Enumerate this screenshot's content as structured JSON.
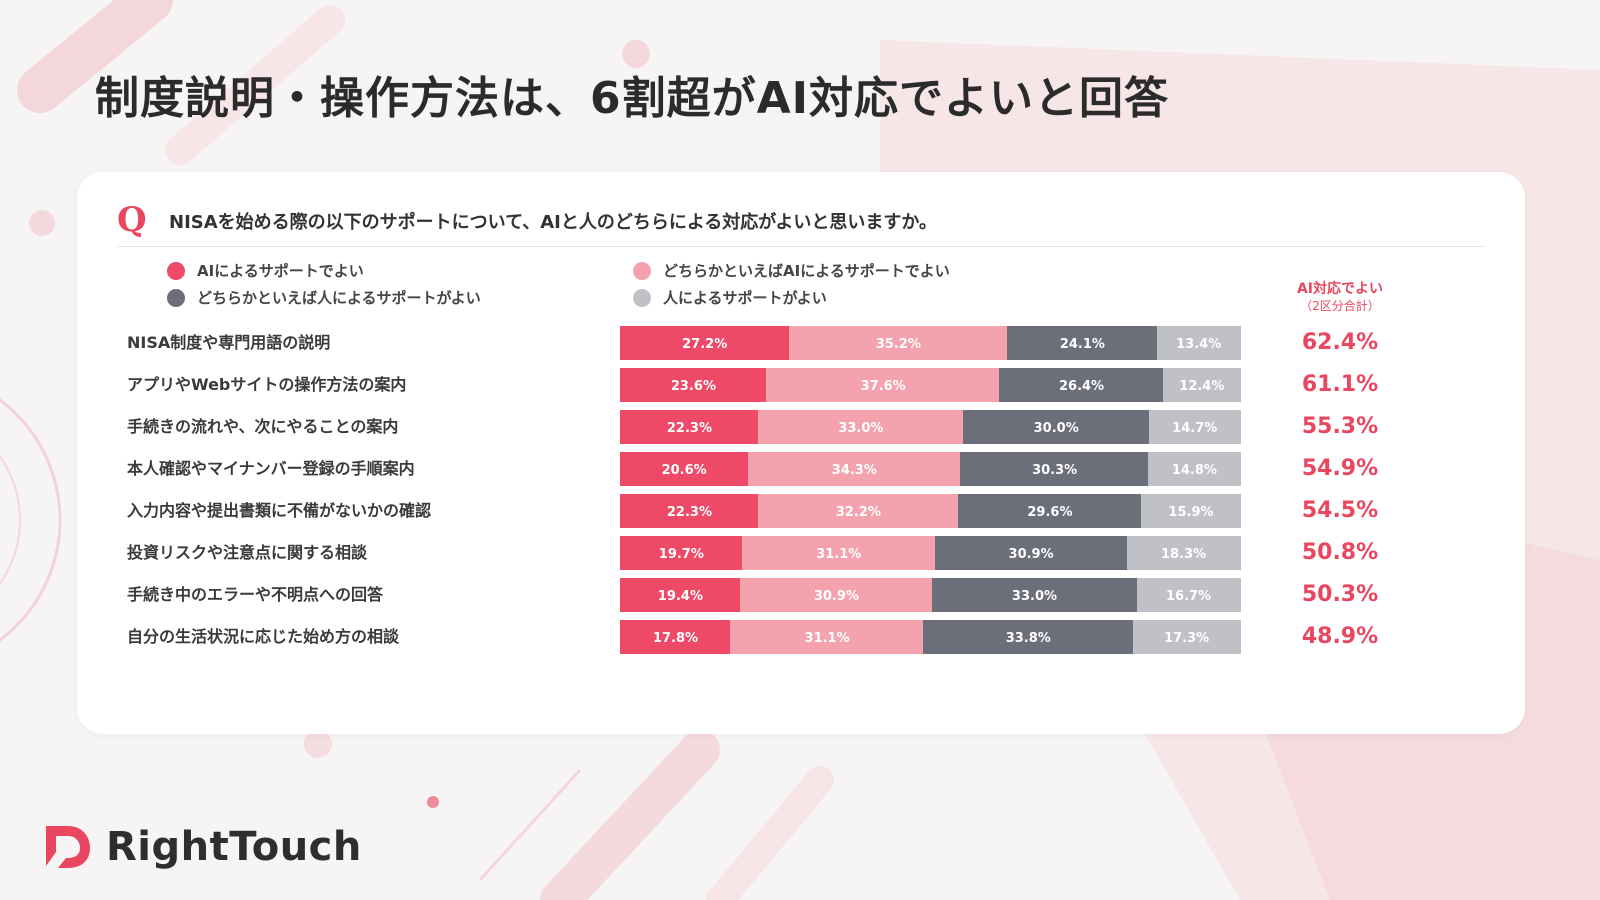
{
  "title": "制度説明・操作方法は、6割超がAI対応でよいと回答",
  "question": {
    "mark": "Q",
    "text": "NISAを始める際の以下のサポートについて、AIと人のどちらによる対応がよいと思いますか。"
  },
  "summary_header": {
    "title": "AI対応でよい",
    "subtitle": "（2区分合計）"
  },
  "brand": {
    "name": "RightTouch"
  },
  "colors": {
    "accent": "#e8475f",
    "ai": "#ee4a68",
    "lean_ai": "#f4a3ae",
    "lean_human": "#6c6f79",
    "human": "#bfc1c6",
    "background": "#f6f4f4",
    "card": "#ffffff"
  },
  "chart_data": {
    "type": "bar",
    "orientation": "horizontal",
    "stacked": true,
    "percent_scale": true,
    "xlim": [
      0,
      100
    ],
    "grid": false,
    "legend_position": "top",
    "categories": [
      "NISA制度や専門用語の説明",
      "アプリやWebサイトの操作方法の案内",
      "手続きの流れや、次にやることの案内",
      "本人確認やマイナンバー登録の手順案内",
      "入力内容や提出書類に不備がないかの確認",
      "投資リスクや注意点に関する相談",
      "手続き中のエラーや不明点への回答",
      "自分の生活状況に応じた始め方の相談"
    ],
    "series": [
      {
        "name": "AIによるサポートでよい",
        "color": "#ee4a68",
        "values": [
          27.2,
          23.6,
          22.3,
          20.6,
          22.3,
          19.7,
          19.4,
          17.8
        ],
        "labels": [
          "27.2%",
          "23.6%",
          "22.3%",
          "20.6%",
          "22.3%",
          "19.7%",
          "19.4%",
          "17.8%"
        ]
      },
      {
        "name": "どちらかといえばAIによるサポートでよい",
        "color": "#f4a3ae",
        "values": [
          35.2,
          37.6,
          33.0,
          34.3,
          32.2,
          31.1,
          30.9,
          31.1
        ],
        "labels": [
          "35.2%",
          "37.6%",
          "33.0%",
          "34.3%",
          "32.2%",
          "31.1%",
          "30.9%",
          "31.1%"
        ]
      },
      {
        "name": "どちらかといえば人によるサポートがよい",
        "color": "#6c6f79",
        "values": [
          24.1,
          26.4,
          30.0,
          30.3,
          29.6,
          30.9,
          33.0,
          33.8
        ],
        "labels": [
          "24.1%",
          "26.4%",
          "30.0%",
          "30.3%",
          "29.6%",
          "30.9%",
          "33.0%",
          "33.8%"
        ]
      },
      {
        "name": "人によるサポートがよい",
        "color": "#bfc1c6",
        "values": [
          13.4,
          12.4,
          14.7,
          14.8,
          15.9,
          18.3,
          16.7,
          17.3
        ],
        "labels": [
          "13.4%",
          "12.4%",
          "14.7%",
          "14.8%",
          "15.9%",
          "18.3%",
          "16.7%",
          "17.3%"
        ]
      }
    ],
    "totals": {
      "values": [
        62.4,
        61.1,
        55.3,
        54.9,
        54.5,
        50.8,
        50.3,
        48.9
      ],
      "labels": [
        "62.4%",
        "61.1%",
        "55.3%",
        "54.9%",
        "54.5%",
        "50.8%",
        "50.3%",
        "48.9%"
      ]
    }
  }
}
